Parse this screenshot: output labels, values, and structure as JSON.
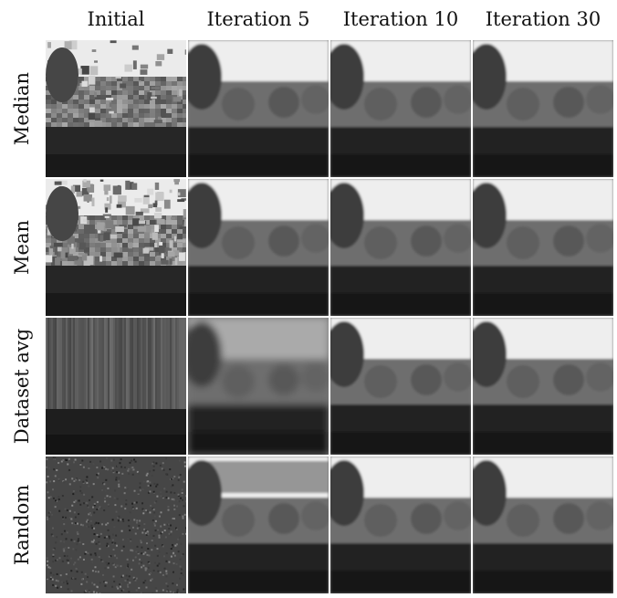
{
  "columns": [
    "Initial",
    "Iteration 5",
    "Iteration 10",
    "Iteration 30"
  ],
  "rows": [
    "Median",
    "Mean",
    "Dataset avg",
    "Random"
  ],
  "cells": [
    {
      "row": "Median",
      "column": "Initial",
      "style": "blocky-scene"
    },
    {
      "row": "Median",
      "column": "Iteration 5",
      "style": "smooth-scene"
    },
    {
      "row": "Median",
      "column": "Iteration 10",
      "style": "smooth-scene"
    },
    {
      "row": "Median",
      "column": "Iteration 30",
      "style": "smooth-scene"
    },
    {
      "row": "Mean",
      "column": "Initial",
      "style": "noisy-scene"
    },
    {
      "row": "Mean",
      "column": "Iteration 5",
      "style": "smooth-scene"
    },
    {
      "row": "Mean",
      "column": "Iteration 10",
      "style": "smooth-scene"
    },
    {
      "row": "Mean",
      "column": "Iteration 30",
      "style": "smooth-scene"
    },
    {
      "row": "Dataset avg",
      "column": "Initial",
      "style": "gradient-blur"
    },
    {
      "row": "Dataset avg",
      "column": "Iteration 5",
      "style": "blurred-scene"
    },
    {
      "row": "Dataset avg",
      "column": "Iteration 10",
      "style": "smooth-scene"
    },
    {
      "row": "Dataset avg",
      "column": "Iteration 30",
      "style": "smooth-scene"
    },
    {
      "row": "Random",
      "column": "Initial",
      "style": "noise"
    },
    {
      "row": "Random",
      "column": "Iteration 5",
      "style": "smooth-scene"
    },
    {
      "row": "Random",
      "column": "Iteration 10",
      "style": "smooth-scene"
    },
    {
      "row": "Random",
      "column": "Iteration 30",
      "style": "smooth-scene"
    }
  ]
}
